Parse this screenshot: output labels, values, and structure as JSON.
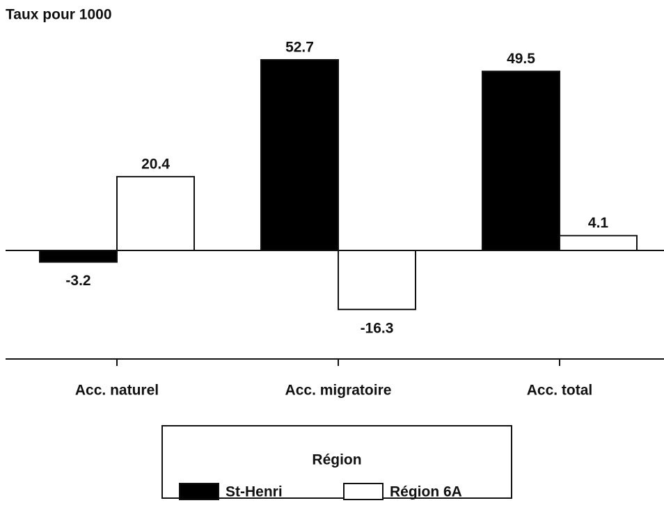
{
  "chart_data": {
    "type": "bar",
    "ylabel": "Taux pour 1000",
    "categories": [
      "Acc. naturel",
      "Acc. migratoire",
      "Acc. total"
    ],
    "series": [
      {
        "name": "St-Henri",
        "color": "#000000",
        "values": [
          -3.2,
          52.7,
          49.5
        ]
      },
      {
        "name": "Région 6A",
        "color": "#ffffff",
        "values": [
          20.4,
          -16.3,
          4.1
        ]
      }
    ],
    "ylim": [
      -30,
      60
    ],
    "legend_title": "Région"
  }
}
